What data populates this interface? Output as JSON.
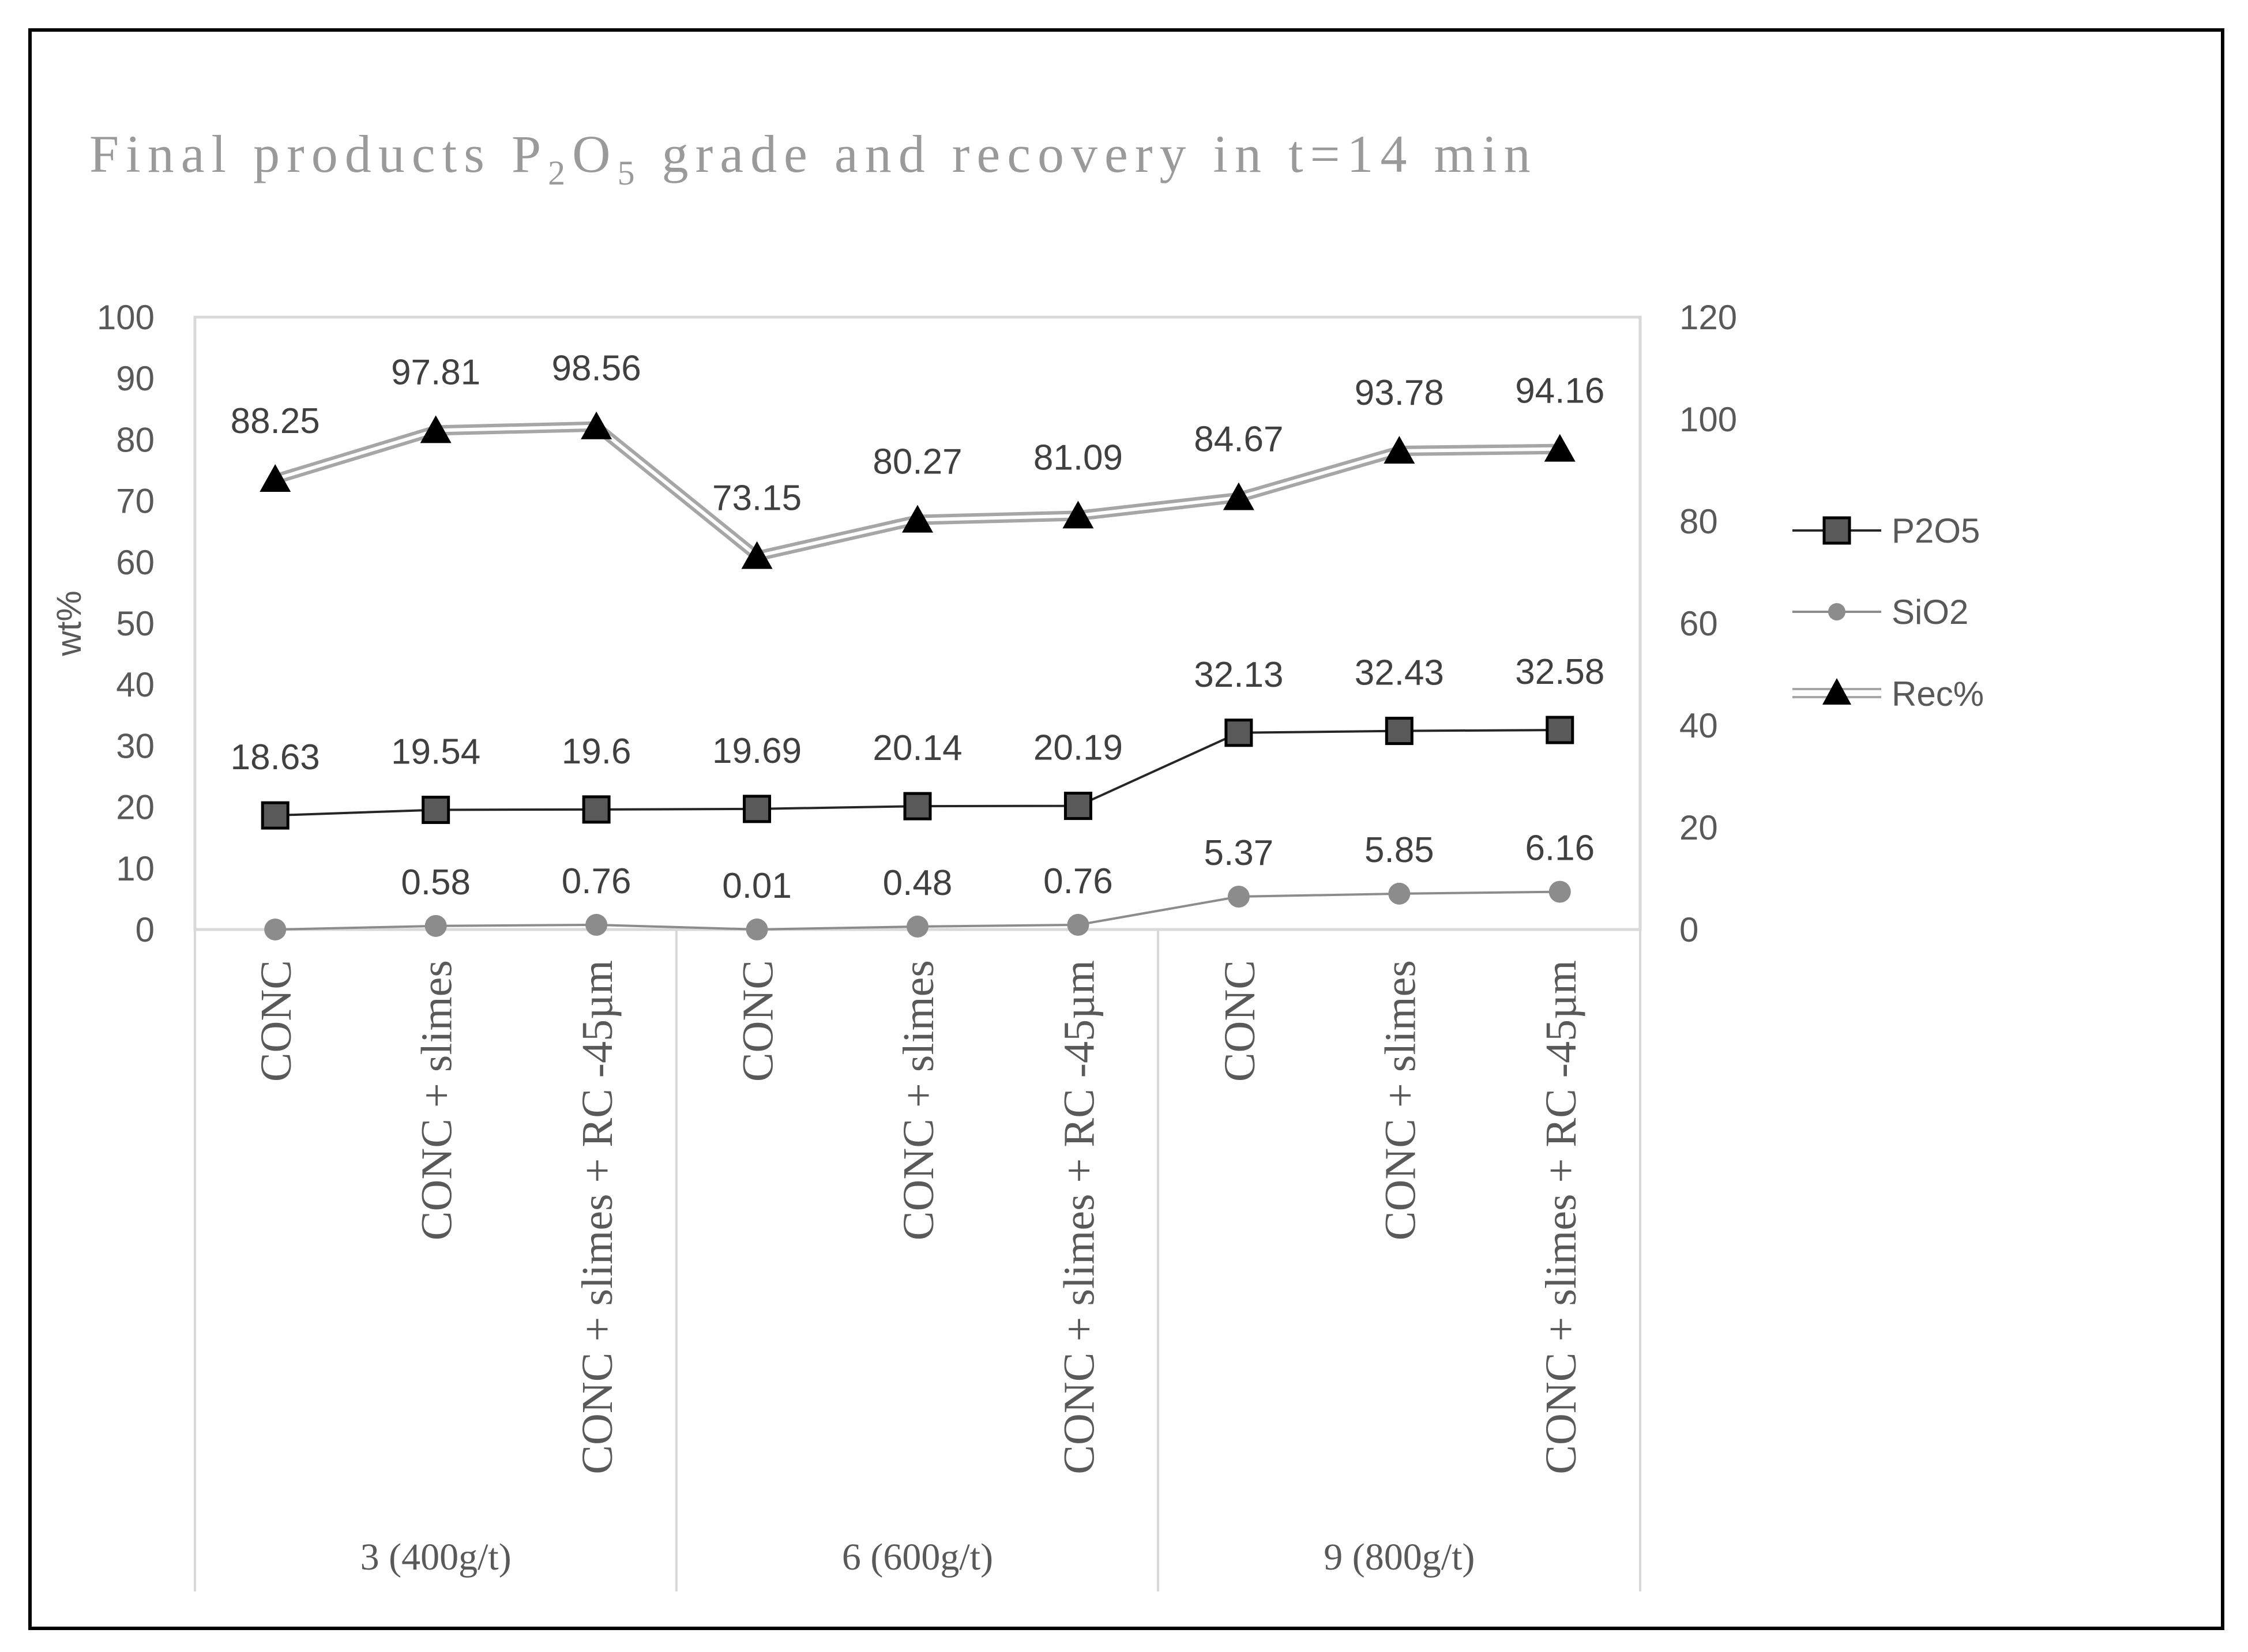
{
  "chart_data": {
    "type": "line",
    "title": {
      "prefix": "Final products P",
      "sub1": "2",
      "mid": "O",
      "sub2": "5",
      "suffix": " grade and recovery in t=14 min"
    },
    "ylabel": "wt%",
    "ylim": [
      0,
      100
    ],
    "y2lim": [
      0,
      120
    ],
    "yticks": [
      "0",
      "10",
      "20",
      "30",
      "40",
      "50",
      "60",
      "70",
      "80",
      "90",
      "100"
    ],
    "y2ticks": [
      "0",
      "20",
      "40",
      "60",
      "80",
      "100",
      "120"
    ],
    "categories": [
      "CONC",
      "CONC + slimes",
      "CONC + slimes + RC -45µm",
      "CONC",
      "CONC + slimes",
      "CONC + slimes + RC -45µm",
      "CONC",
      "CONC + slimes",
      "CONC + slimes + RC -45µm"
    ],
    "groups": [
      "3 (400g/t)",
      "6 (600g/t)",
      "9 (800g/t)"
    ],
    "series": [
      {
        "name": "P2O5",
        "axis": "left",
        "values": [
          18.63,
          19.54,
          19.6,
          19.69,
          20.14,
          20.19,
          32.13,
          32.43,
          32.58
        ],
        "labels": [
          "18.63",
          "19.54",
          "19.6",
          "19.69",
          "20.14",
          "20.19",
          "32.13",
          "32.43",
          "32.58"
        ]
      },
      {
        "name": "SiO2",
        "axis": "left",
        "values": [
          0,
          0.58,
          0.76,
          0.01,
          0.48,
          0.76,
          5.37,
          5.85,
          6.16
        ],
        "labels": [
          "",
          "0.58",
          "0.76",
          "0.01",
          "0.48",
          "0.76",
          "5.37",
          "5.85",
          "6.16"
        ]
      },
      {
        "name": "Rec%",
        "axis": "right",
        "values": [
          88.25,
          97.81,
          98.56,
          73.15,
          80.27,
          81.09,
          84.67,
          93.78,
          94.16
        ],
        "labels": [
          "88.25",
          "97.81",
          "98.56",
          "73.15",
          "80.27",
          "81.09",
          "84.67",
          "93.78",
          "94.16"
        ]
      }
    ],
    "legend_position": "right"
  },
  "colors": {
    "p2o5_fill": "#595959",
    "p2o5_line": "#262626",
    "sio2": "#8c8c8c",
    "rec_line": "#a6a6a6",
    "rec_marker": "#000000",
    "axis": "#d9d9d9",
    "frame": "#000000"
  }
}
